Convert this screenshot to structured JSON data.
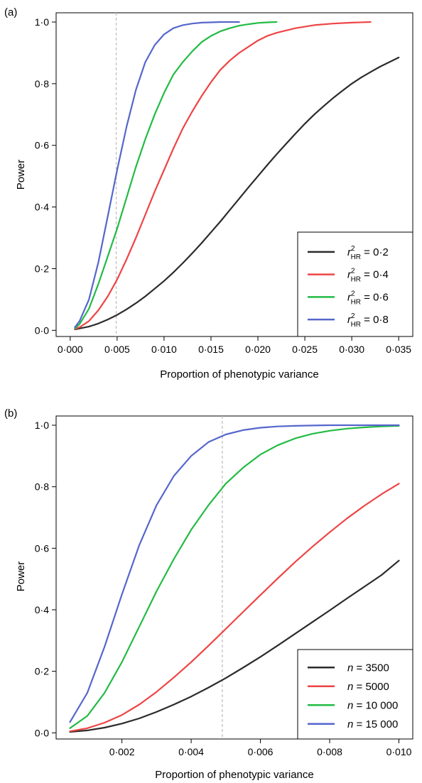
{
  "chart_data": [
    {
      "panel_label": "(a)",
      "type": "line",
      "xlabel": "Proportion of phenotypic variance",
      "ylabel": "Power",
      "xlim": [
        -0.0015,
        0.0365
      ],
      "ylim": [
        -0.02,
        1.03
      ],
      "xticks": [
        0.0,
        0.005,
        0.01,
        0.015,
        0.02,
        0.025,
        0.03,
        0.035
      ],
      "xtick_labels": [
        "0·000",
        "0·005",
        "0·010",
        "0·015",
        "0·020",
        "0·025",
        "0·030",
        "0·035"
      ],
      "yticks": [
        0.0,
        0.2,
        0.4,
        0.6,
        0.8,
        1.0
      ],
      "ytick_labels": [
        "0·0",
        "0·2",
        "0·4",
        "0·6",
        "0·8",
        "1·0"
      ],
      "reference_line_x": 0.0049,
      "legend_position": "bottom-right",
      "series": [
        {
          "name": "r²HR = 0·2",
          "legend_prefix": "r",
          "legend_sup": "2",
          "legend_sub": "HR",
          "legend_value": " = 0·2",
          "color": "#2b2b2b",
          "x": [
            0.0005,
            0.001,
            0.002,
            0.003,
            0.004,
            0.005,
            0.006,
            0.007,
            0.008,
            0.009,
            0.01,
            0.011,
            0.012,
            0.013,
            0.014,
            0.015,
            0.016,
            0.017,
            0.018,
            0.019,
            0.02,
            0.021,
            0.022,
            0.023,
            0.024,
            0.025,
            0.026,
            0.027,
            0.028,
            0.029,
            0.03,
            0.031,
            0.032,
            0.033,
            0.034,
            0.035
          ],
          "y": [
            0.003,
            0.006,
            0.012,
            0.022,
            0.035,
            0.05,
            0.068,
            0.088,
            0.11,
            0.135,
            0.16,
            0.188,
            0.218,
            0.25,
            0.283,
            0.318,
            0.353,
            0.39,
            0.427,
            0.464,
            0.5,
            0.536,
            0.571,
            0.605,
            0.638,
            0.67,
            0.7,
            0.727,
            0.753,
            0.777,
            0.8,
            0.82,
            0.838,
            0.855,
            0.87,
            0.885
          ]
        },
        {
          "name": "r²HR = 0·4",
          "legend_prefix": "r",
          "legend_sup": "2",
          "legend_sub": "HR",
          "legend_value": " = 0·4",
          "color": "#ee4444",
          "x": [
            0.0005,
            0.001,
            0.002,
            0.003,
            0.004,
            0.005,
            0.006,
            0.007,
            0.008,
            0.009,
            0.01,
            0.011,
            0.012,
            0.013,
            0.014,
            0.015,
            0.016,
            0.017,
            0.018,
            0.019,
            0.02,
            0.021,
            0.022,
            0.024,
            0.026,
            0.028,
            0.03,
            0.032
          ],
          "y": [
            0.004,
            0.01,
            0.03,
            0.065,
            0.11,
            0.165,
            0.23,
            0.3,
            0.375,
            0.45,
            0.52,
            0.59,
            0.655,
            0.71,
            0.76,
            0.805,
            0.845,
            0.875,
            0.9,
            0.92,
            0.94,
            0.955,
            0.965,
            0.98,
            0.99,
            0.995,
            0.998,
            1.0
          ]
        },
        {
          "name": "r²HR = 0·6",
          "legend_prefix": "r",
          "legend_sup": "2",
          "legend_sub": "HR",
          "legend_value": " = 0·6",
          "color": "#22bb44",
          "x": [
            0.0005,
            0.001,
            0.002,
            0.003,
            0.004,
            0.005,
            0.006,
            0.007,
            0.008,
            0.009,
            0.01,
            0.011,
            0.012,
            0.013,
            0.014,
            0.015,
            0.016,
            0.017,
            0.018,
            0.019,
            0.02,
            0.021,
            0.022
          ],
          "y": [
            0.006,
            0.02,
            0.07,
            0.15,
            0.24,
            0.33,
            0.43,
            0.53,
            0.62,
            0.7,
            0.77,
            0.83,
            0.87,
            0.905,
            0.935,
            0.955,
            0.97,
            0.98,
            0.988,
            0.993,
            0.997,
            0.999,
            1.0
          ]
        },
        {
          "name": "r²HR = 0·8",
          "legend_prefix": "r",
          "legend_sup": "2",
          "legend_sub": "HR",
          "legend_value": " = 0·8",
          "color": "#5566cc",
          "x": [
            0.0005,
            0.001,
            0.002,
            0.003,
            0.004,
            0.005,
            0.006,
            0.007,
            0.008,
            0.009,
            0.01,
            0.011,
            0.012,
            0.013,
            0.014,
            0.015,
            0.016,
            0.017,
            0.018
          ],
          "y": [
            0.01,
            0.03,
            0.1,
            0.22,
            0.37,
            0.52,
            0.66,
            0.78,
            0.87,
            0.925,
            0.96,
            0.98,
            0.99,
            0.995,
            0.998,
            0.999,
            1.0,
            1.0,
            1.0
          ]
        }
      ]
    },
    {
      "panel_label": "(b)",
      "type": "line",
      "xlabel": "Proportion of phenotypic variance",
      "ylabel": "Power",
      "xlim": [
        0.0001,
        0.0104
      ],
      "ylim": [
        -0.02,
        1.03
      ],
      "xticks": [
        0.002,
        0.004,
        0.006,
        0.008,
        0.01
      ],
      "xtick_labels": [
        "0·002",
        "0·004",
        "0·006",
        "0·008",
        "0·010"
      ],
      "yticks": [
        0.0,
        0.2,
        0.4,
        0.6,
        0.8,
        1.0
      ],
      "ytick_labels": [
        "0·0",
        "0·2",
        "0·4",
        "0·6",
        "0·8",
        "1·0"
      ],
      "reference_line_x": 0.0049,
      "legend_position": "bottom-right",
      "series": [
        {
          "name": "n =  3500",
          "legend_prefix": "n",
          "legend_value": " =   3500",
          "color": "#2b2b2b",
          "x": [
            0.0005,
            0.001,
            0.0015,
            0.002,
            0.0025,
            0.003,
            0.0035,
            0.004,
            0.0045,
            0.005,
            0.0055,
            0.006,
            0.0065,
            0.007,
            0.0075,
            0.008,
            0.0085,
            0.009,
            0.0095,
            0.01
          ],
          "y": [
            0.003,
            0.008,
            0.017,
            0.03,
            0.047,
            0.068,
            0.092,
            0.118,
            0.147,
            0.178,
            0.212,
            0.247,
            0.284,
            0.322,
            0.36,
            0.398,
            0.437,
            0.475,
            0.513,
            0.56
          ]
        },
        {
          "name": "n =  5000",
          "legend_prefix": "n",
          "legend_value": " =   5000",
          "color": "#ee4444",
          "x": [
            0.0005,
            0.001,
            0.0015,
            0.002,
            0.0025,
            0.003,
            0.0035,
            0.004,
            0.0045,
            0.005,
            0.0055,
            0.006,
            0.0065,
            0.007,
            0.0075,
            0.008,
            0.0085,
            0.009,
            0.0095,
            0.01
          ],
          "y": [
            0.005,
            0.015,
            0.033,
            0.058,
            0.092,
            0.133,
            0.18,
            0.23,
            0.283,
            0.338,
            0.393,
            0.448,
            0.502,
            0.555,
            0.605,
            0.652,
            0.697,
            0.738,
            0.776,
            0.81
          ]
        },
        {
          "name": "n = 10 000",
          "legend_prefix": "n",
          "legend_value": " = 10 000",
          "color": "#22bb44",
          "x": [
            0.0005,
            0.001,
            0.0015,
            0.002,
            0.0025,
            0.003,
            0.0035,
            0.004,
            0.0045,
            0.005,
            0.0055,
            0.006,
            0.0065,
            0.007,
            0.0075,
            0.008,
            0.0085,
            0.009,
            0.0095,
            0.01
          ],
          "y": [
            0.015,
            0.055,
            0.13,
            0.23,
            0.345,
            0.46,
            0.565,
            0.66,
            0.74,
            0.81,
            0.862,
            0.905,
            0.935,
            0.957,
            0.972,
            0.982,
            0.989,
            0.993,
            0.996,
            0.998
          ]
        },
        {
          "name": "n = 15 000",
          "legend_prefix": "n",
          "legend_value": " = 15 000",
          "color": "#5566cc",
          "x": [
            0.0005,
            0.001,
            0.0015,
            0.002,
            0.0025,
            0.003,
            0.0035,
            0.004,
            0.0045,
            0.005,
            0.0055,
            0.006,
            0.0065,
            0.007,
            0.0075,
            0.008,
            0.0085,
            0.009,
            0.0095,
            0.01
          ],
          "y": [
            0.035,
            0.13,
            0.28,
            0.45,
            0.61,
            0.74,
            0.835,
            0.9,
            0.945,
            0.97,
            0.984,
            0.992,
            0.996,
            0.998,
            0.999,
            1.0,
            1.0,
            1.0,
            1.0,
            1.0
          ]
        }
      ]
    }
  ]
}
